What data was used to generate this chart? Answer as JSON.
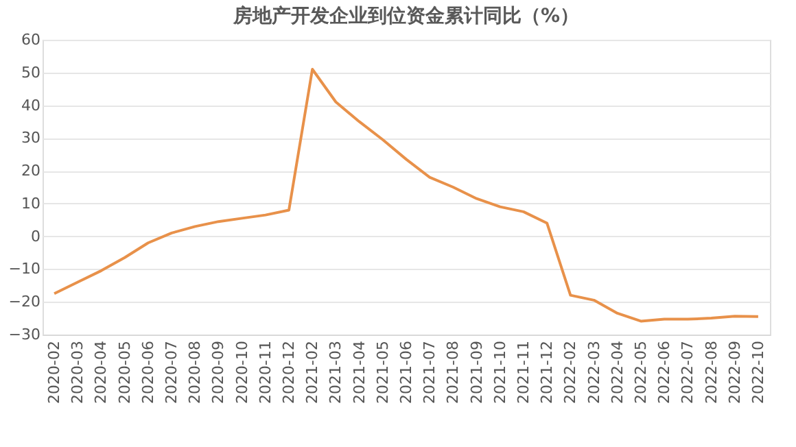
{
  "chart_data": {
    "type": "line",
    "title": "房地产开发企业到位资金累计同比（%）",
    "categories": [
      "2020-02",
      "2020-03",
      "2020-04",
      "2020-05",
      "2020-06",
      "2020-07",
      "2020-08",
      "2020-09",
      "2020-10",
      "2020-11",
      "2020-12",
      "2021-02",
      "2021-03",
      "2021-04",
      "2021-05",
      "2021-06",
      "2021-07",
      "2021-08",
      "2021-09",
      "2021-10",
      "2021-11",
      "2021-12",
      "2022-02",
      "2022-03",
      "2022-04",
      "2022-05",
      "2022-06",
      "2022-07",
      "2022-08",
      "2022-09",
      "2022-10"
    ],
    "series": [
      {
        "color": "#e8914a",
        "values": [
          -17.5,
          -14,
          -10.5,
          -6.5,
          -2,
          1,
          3,
          4.5,
          5.5,
          6.5,
          8,
          51,
          41,
          35,
          29.5,
          23.5,
          18,
          15,
          11.5,
          9,
          7.5,
          4,
          -18,
          -19.5,
          -23.5,
          -25.9,
          -25.3,
          -25.3,
          -25,
          -24.4,
          -24.5
        ]
      }
    ],
    "ylim": [
      -30,
      60
    ],
    "yticks": [
      -30,
      -20,
      -10,
      0,
      10,
      20,
      30,
      40,
      50,
      60
    ],
    "grid": "y",
    "legend": false,
    "marker": "none",
    "line_style": "solid"
  }
}
